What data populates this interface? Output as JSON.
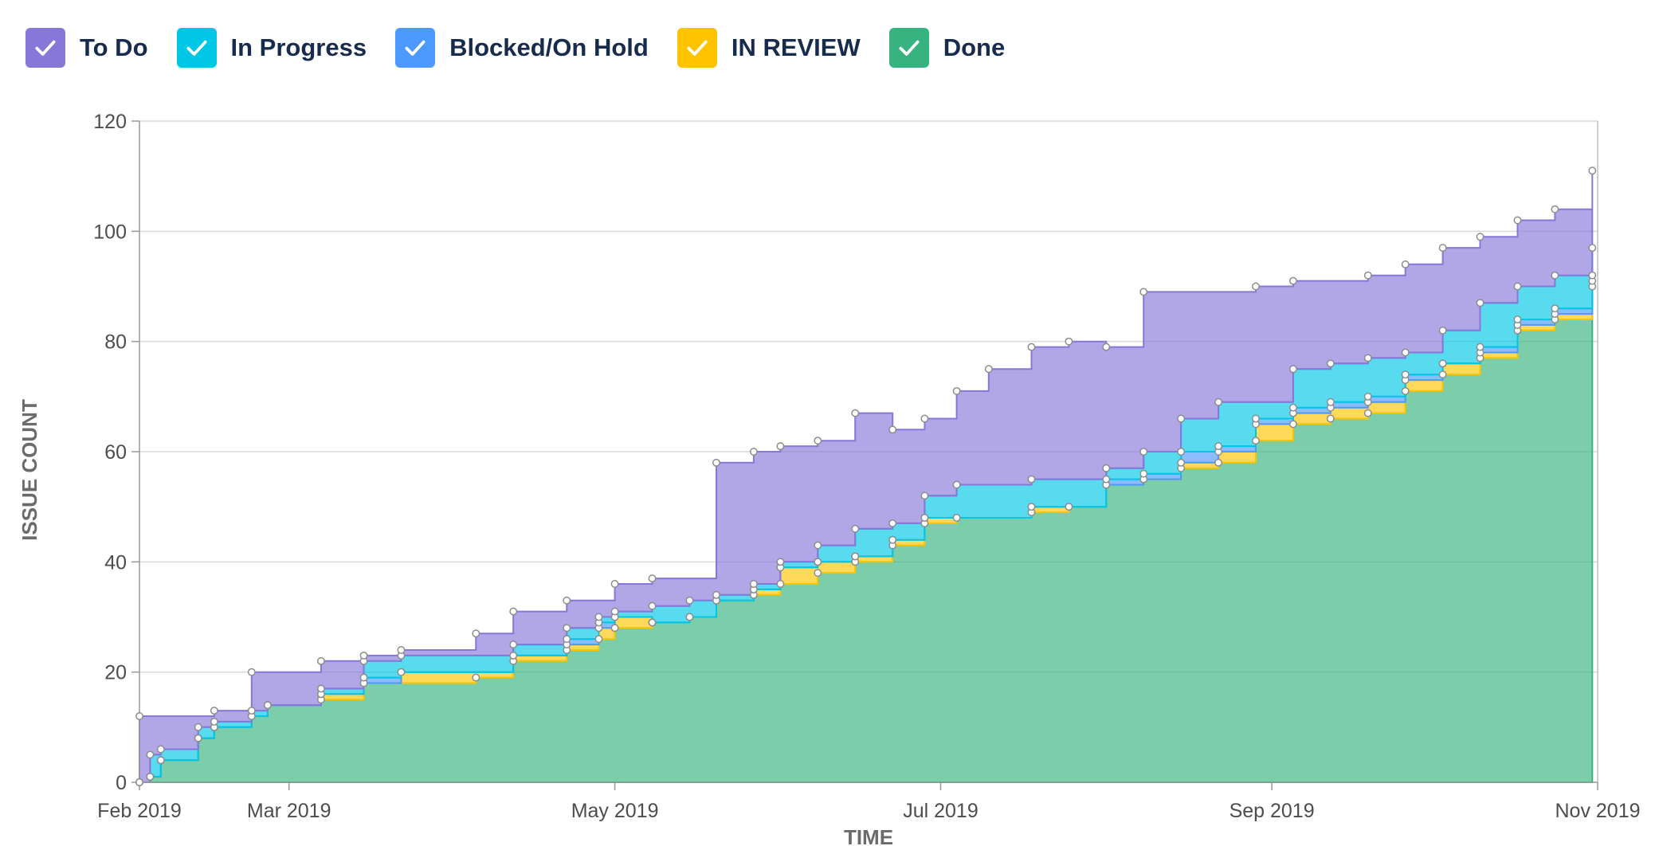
{
  "legend": [
    {
      "label": "To Do",
      "color": "#8777d9",
      "icon": "check-icon"
    },
    {
      "label": "In Progress",
      "color": "#00c7e6",
      "icon": "check-icon"
    },
    {
      "label": "Blocked/On Hold",
      "color": "#4c9aff",
      "icon": "check-icon"
    },
    {
      "label": "IN REVIEW",
      "color": "#ffc400",
      "icon": "check-icon"
    },
    {
      "label": "Done",
      "color": "#36b37e",
      "icon": "check-icon"
    }
  ],
  "chart_data": {
    "type": "area",
    "stacked": true,
    "xlabel": "TIME",
    "ylabel": "ISSUE COUNT",
    "ylim": [
      0,
      120
    ],
    "yticks": [
      0,
      20,
      40,
      60,
      80,
      100,
      120
    ],
    "xlim": [
      "2019-02-01",
      "2019-11-01"
    ],
    "xticks": [
      {
        "date": "2019-02-01",
        "label": "Feb 2019"
      },
      {
        "date": "2019-03-01",
        "label": "Mar 2019"
      },
      {
        "date": "2019-05-01",
        "label": "May 2019"
      },
      {
        "date": "2019-07-01",
        "label": "Jul 2019"
      },
      {
        "date": "2019-09-01",
        "label": "Sep 2019"
      },
      {
        "date": "2019-11-01",
        "label": "Nov 2019"
      }
    ],
    "grid": true,
    "legend_position": "top-left",
    "x": [
      "2019-02-01",
      "2019-02-03",
      "2019-02-05",
      "2019-02-12",
      "2019-02-15",
      "2019-02-22",
      "2019-02-25",
      "2019-03-07",
      "2019-03-15",
      "2019-03-22",
      "2019-04-05",
      "2019-04-12",
      "2019-04-22",
      "2019-04-28",
      "2019-05-01",
      "2019-05-08",
      "2019-05-15",
      "2019-05-20",
      "2019-05-27",
      "2019-06-01",
      "2019-06-08",
      "2019-06-15",
      "2019-06-22",
      "2019-06-28",
      "2019-07-04",
      "2019-07-10",
      "2019-07-18",
      "2019-07-25",
      "2019-08-01",
      "2019-08-08",
      "2019-08-15",
      "2019-08-22",
      "2019-08-29",
      "2019-09-05",
      "2019-09-12",
      "2019-09-19",
      "2019-09-26",
      "2019-10-03",
      "2019-10-10",
      "2019-10-17",
      "2019-10-24",
      "2019-10-31"
    ],
    "series": [
      {
        "name": "Done",
        "color": "#36b37e",
        "values": [
          0,
          1,
          4,
          8,
          10,
          12,
          14,
          15,
          18,
          18,
          19,
          22,
          24,
          26,
          28,
          29,
          30,
          33,
          34,
          36,
          38,
          40,
          43,
          47,
          48,
          48,
          49,
          50,
          54,
          55,
          57,
          58,
          62,
          65,
          66,
          67,
          71,
          74,
          77,
          82,
          84,
          90
        ]
      },
      {
        "name": "IN REVIEW",
        "color": "#ffc400",
        "values": [
          0,
          0,
          0,
          0,
          0,
          0,
          0,
          1,
          0,
          2,
          1,
          1,
          1,
          2,
          2,
          0,
          0,
          0,
          1,
          3,
          2,
          1,
          1,
          1,
          0,
          0,
          1,
          0,
          0,
          0,
          1,
          2,
          3,
          2,
          2,
          2,
          2,
          2,
          1,
          1,
          1,
          1
        ]
      },
      {
        "name": "Blocked/On Hold",
        "color": "#4c9aff",
        "values": [
          0,
          0,
          0,
          0,
          0,
          0,
          0,
          0,
          1,
          0,
          0,
          0,
          1,
          1,
          0,
          0,
          0,
          0,
          0,
          0,
          0,
          0,
          0,
          0,
          0,
          0,
          0,
          0,
          1,
          1,
          2,
          1,
          1,
          1,
          1,
          1,
          1,
          0,
          1,
          1,
          1,
          1
        ]
      },
      {
        "name": "In Progress",
        "color": "#00c7e6",
        "values": [
          0,
          4,
          2,
          2,
          1,
          1,
          0,
          1,
          3,
          3,
          3,
          2,
          2,
          1,
          1,
          3,
          3,
          1,
          1,
          1,
          3,
          5,
          3,
          4,
          6,
          6,
          5,
          5,
          2,
          4,
          6,
          8,
          3,
          7,
          7,
          7,
          4,
          6,
          8,
          6,
          6,
          5
        ]
      },
      {
        "name": "To Do",
        "color": "#8777d9",
        "values": [
          12,
          7,
          6,
          2,
          2,
          7,
          6,
          5,
          1,
          1,
          4,
          6,
          5,
          3,
          5,
          5,
          4,
          24,
          24,
          21,
          19,
          21,
          17,
          14,
          17,
          21,
          24,
          25,
          22,
          29,
          23,
          20,
          21,
          16,
          15,
          15,
          16,
          15,
          12,
          12,
          12,
          14
        ]
      }
    ]
  }
}
